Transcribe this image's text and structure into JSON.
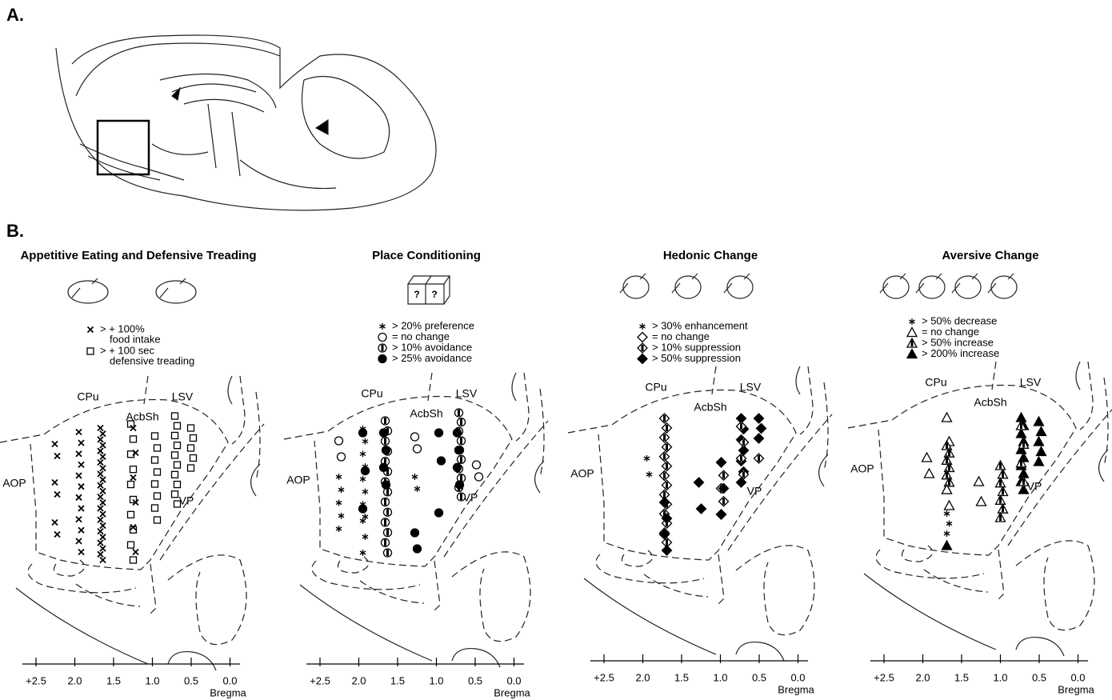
{
  "panel_a": {
    "label": "A."
  },
  "panel_b": {
    "label": "B.",
    "panels": [
      {
        "title": "Appetitive Eating and Defensive Treading",
        "legend": [
          [
            "> + 100%",
            "food intake"
          ],
          [
            "> + 100 sec",
            "defensive treading"
          ]
        ],
        "regions": {
          "cpu": "CPu",
          "lsv": "LSV",
          "acbsh": "AcbSh",
          "aop": "AOP",
          "vp": "VP"
        },
        "axis": {
          "ticks": [
            "+2.5",
            "2.0",
            "1.5",
            "1.0",
            "0.5",
            "0.0"
          ],
          "label": "Bregma"
        }
      },
      {
        "title": "Place Conditioning",
        "icon_text": [
          "?",
          "?"
        ],
        "legend": [
          [
            "> 20% preference"
          ],
          [
            "= no change"
          ],
          [
            "> 10% avoidance"
          ],
          [
            "> 25% avoidance"
          ]
        ],
        "regions": {
          "cpu": "CPu",
          "lsv": "LSV",
          "acbsh": "AcbSh",
          "aop": "AOP",
          "vp": "VP"
        },
        "axis": {
          "ticks": [
            "+2.5",
            "2.0",
            "1.5",
            "1.0",
            "0.5",
            "0.0"
          ],
          "label": "Bregma"
        }
      },
      {
        "title": "Hedonic Change",
        "legend": [
          [
            "> 30% enhancement"
          ],
          [
            "= no change"
          ],
          [
            "> 10% suppression"
          ],
          [
            "> 50% suppression"
          ]
        ],
        "regions": {
          "cpu": "CPu",
          "lsv": "LSV",
          "acbsh": "AcbSh",
          "aop": "AOP",
          "vp": "VP"
        },
        "axis": {
          "ticks": [
            "+2.5",
            "2.0",
            "1.5",
            "1.0",
            "0.5",
            "0.0"
          ],
          "label": "Bregma"
        }
      },
      {
        "title": "Aversive Change",
        "legend": [
          [
            "> 50% decrease"
          ],
          [
            "= no change"
          ],
          [
            "> 50% increase"
          ],
          [
            "> 200% increase"
          ]
        ],
        "regions": {
          "cpu": "CPu",
          "lsv": "LSV",
          "acbsh": "AcbSh",
          "aop": "AOP",
          "vp": "VP"
        },
        "axis": {
          "ticks": [
            "+2.5",
            "2.0",
            "1.5",
            "1.0",
            "0.5",
            "0.0"
          ],
          "label": "Bregma"
        }
      }
    ]
  }
}
